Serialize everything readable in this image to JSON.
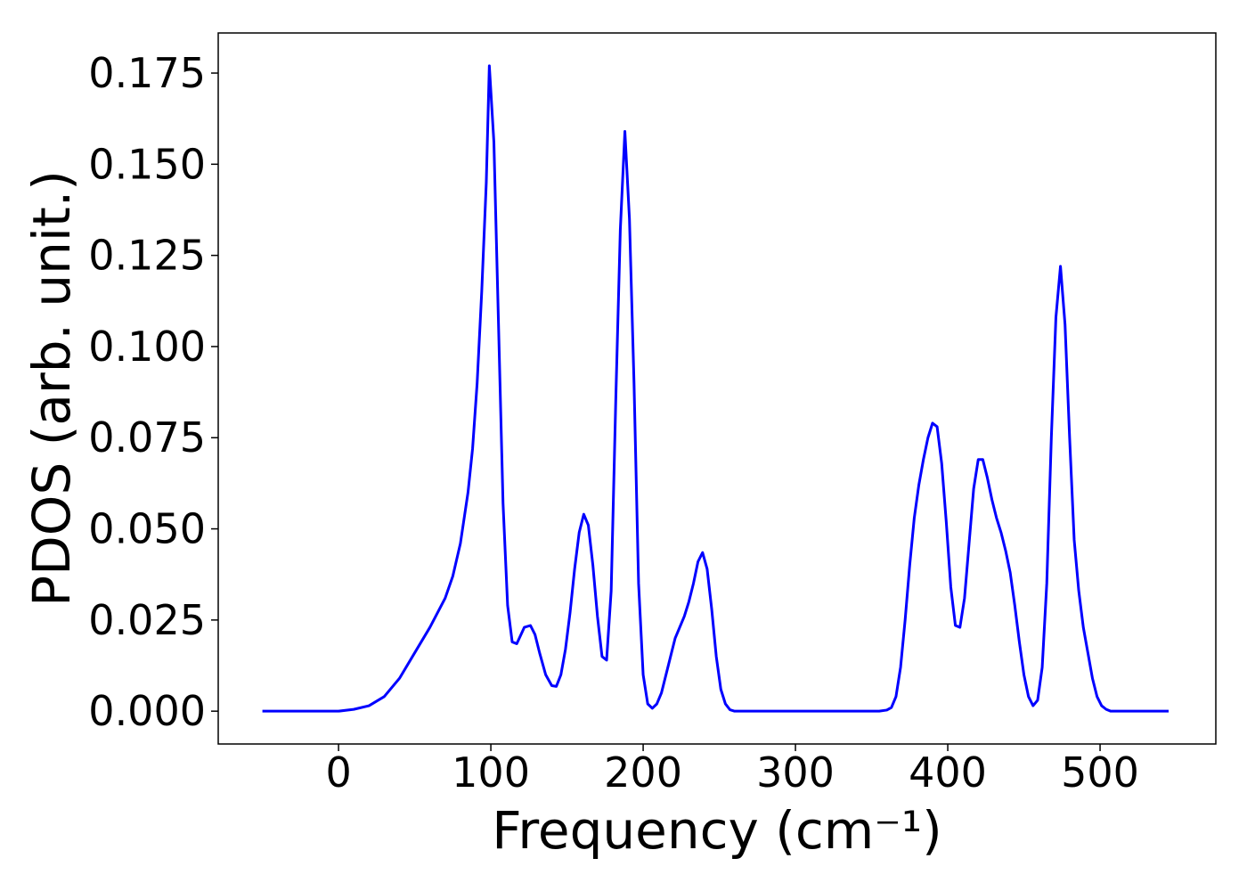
{
  "chart_data": {
    "type": "line",
    "xlabel": "Frequency (cm⁻¹)",
    "ylabel": "PDOS (arb. unit.)",
    "xlim": [
      -79,
      576
    ],
    "ylim": [
      -0.009,
      0.186
    ],
    "xticks": [
      0,
      100,
      200,
      300,
      400,
      500
    ],
    "yticks": [
      {
        "value": 0,
        "label": "0.000"
      },
      0.025,
      {
        "value": 0.05,
        "label": "0.050"
      },
      0.075,
      {
        "value": 0.1,
        "label": "0.100"
      },
      0.125,
      {
        "value": 0.15,
        "label": "0.150"
      },
      0.175
    ],
    "grid": false,
    "series": [
      {
        "color": "#0000ff",
        "x": [
          -50,
          0,
          10,
          20,
          30,
          40,
          50,
          60,
          70,
          75,
          80,
          85,
          88,
          91,
          94,
          97,
          99,
          102,
          106,
          108,
          111,
          114,
          117,
          122,
          126,
          129,
          132,
          136,
          140,
          143,
          146,
          149,
          152,
          155,
          158,
          161,
          164,
          167,
          170,
          173,
          176,
          179,
          182,
          185,
          188,
          191,
          194,
          197,
          200,
          203,
          206,
          209,
          212,
          215,
          218,
          221,
          224,
          227,
          230,
          233,
          236,
          239,
          242,
          245,
          248,
          251,
          254,
          257,
          260,
          300,
          355,
          360,
          363,
          366,
          369,
          372,
          375,
          378,
          381,
          384,
          387,
          390,
          393,
          396,
          399,
          402,
          405,
          408,
          411,
          414,
          417,
          420,
          423,
          426,
          429,
          432,
          435,
          438,
          441,
          444,
          447,
          450,
          453,
          456,
          459,
          462,
          465,
          468,
          471,
          474,
          477,
          480,
          483,
          486,
          489,
          492,
          495,
          498,
          501,
          504,
          507,
          545
        ],
        "values": [
          0,
          0,
          0.0005,
          0.0015,
          0.004,
          0.009,
          0.016,
          0.023,
          0.031,
          0.037,
          0.046,
          0.06,
          0.072,
          0.09,
          0.115,
          0.145,
          0.177,
          0.156,
          0.09,
          0.057,
          0.029,
          0.019,
          0.0185,
          0.023,
          0.0235,
          0.021,
          0.016,
          0.01,
          0.007,
          0.0068,
          0.01,
          0.017,
          0.027,
          0.039,
          0.049,
          0.054,
          0.051,
          0.04,
          0.026,
          0.015,
          0.014,
          0.033,
          0.085,
          0.132,
          0.159,
          0.135,
          0.09,
          0.035,
          0.01,
          0.002,
          0.0008,
          0.002,
          0.005,
          0.01,
          0.015,
          0.02,
          0.023,
          0.026,
          0.03,
          0.035,
          0.041,
          0.0435,
          0.039,
          0.028,
          0.015,
          0.006,
          0.002,
          0.0004,
          0,
          0,
          0,
          0.0003,
          0.001,
          0.004,
          0.012,
          0.025,
          0.04,
          0.053,
          0.062,
          0.069,
          0.075,
          0.079,
          0.078,
          0.068,
          0.052,
          0.034,
          0.0235,
          0.023,
          0.031,
          0.046,
          0.061,
          0.069,
          0.069,
          0.064,
          0.058,
          0.053,
          0.049,
          0.044,
          0.038,
          0.029,
          0.019,
          0.01,
          0.004,
          0.0015,
          0.003,
          0.012,
          0.035,
          0.075,
          0.108,
          0.122,
          0.106,
          0.075,
          0.047,
          0.033,
          0.023,
          0.016,
          0.009,
          0.004,
          0.0015,
          0.0005,
          0,
          0
        ]
      }
    ]
  }
}
